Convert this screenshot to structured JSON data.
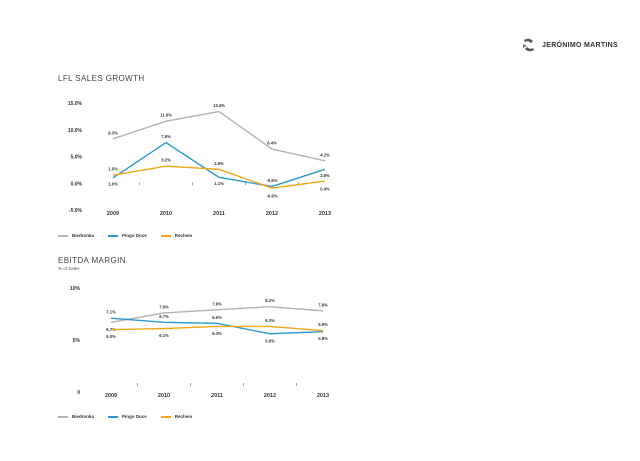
{
  "brand": {
    "name": "JERÓNIMO MARTINS"
  },
  "colors": {
    "biedronka": "#b3b3b3",
    "pingo_doce": "#2c9ad0",
    "recheio": "#f2a516",
    "axis_text": "#333333"
  },
  "chart_data": [
    {
      "type": "line",
      "title": "LFL SALES GROWTH",
      "subtitle": "",
      "categories": [
        "2009",
        "2010",
        "2011",
        "2012",
        "2013"
      ],
      "y_ticks": [
        "15.0%",
        "10.0%",
        "5.0%",
        "0.0%",
        "-5.0%"
      ],
      "ylim": [
        -5,
        15
      ],
      "grid": false,
      "legend": "bottom-left",
      "series": [
        {
          "name": "Biedronka",
          "color_key": "biedronka",
          "values": [
            8.3,
            11.6,
            13.4,
            6.4,
            4.2
          ],
          "labels": [
            "8.3%",
            "11.6%",
            "13.4%",
            "6.4%",
            "4.2%"
          ]
        },
        {
          "name": "Pingo Doce",
          "color_key": "pingo_doce",
          "values": [
            1.0,
            7.6,
            1.1,
            -0.6,
            2.6
          ],
          "labels": [
            "1.0%",
            "7.6%",
            "1.1%",
            "-0.6%",
            "2.6%"
          ]
        },
        {
          "name": "Recheio",
          "color_key": "recheio",
          "values": [
            1.5,
            3.2,
            2.6,
            -0.9,
            0.4
          ],
          "labels": [
            "1.5%",
            "3.2%",
            "2.6%",
            "-0.9%",
            "0.4%"
          ]
        }
      ]
    },
    {
      "type": "line",
      "title": "EBITDA MARGIN",
      "subtitle": "% of Sales",
      "categories": [
        "2009",
        "2010",
        "2011",
        "2012",
        "2013"
      ],
      "y_ticks": [
        "10%",
        "5%",
        "0"
      ],
      "ylim": [
        0,
        10
      ],
      "grid": false,
      "legend": "bottom-left",
      "series": [
        {
          "name": "Biedronka",
          "color_key": "biedronka",
          "values": [
            6.7,
            7.6,
            7.9,
            8.2,
            7.8
          ],
          "labels": [
            "6.7%",
            "7.6%",
            "7.9%",
            "8.2%",
            "7.8%"
          ]
        },
        {
          "name": "Pingo Doce",
          "color_key": "pingo_doce",
          "values": [
            7.1,
            6.7,
            6.6,
            5.6,
            5.8
          ],
          "labels": [
            "7.1%",
            "6.7%",
            "6.6%",
            "5.6%",
            "5.8%"
          ]
        },
        {
          "name": "Recheio",
          "color_key": "recheio",
          "values": [
            6.0,
            6.1,
            6.3,
            6.3,
            5.9
          ],
          "labels": [
            "6.0%",
            "6.1%",
            "6.3%",
            "6.3%",
            "5.9%"
          ]
        }
      ]
    }
  ]
}
